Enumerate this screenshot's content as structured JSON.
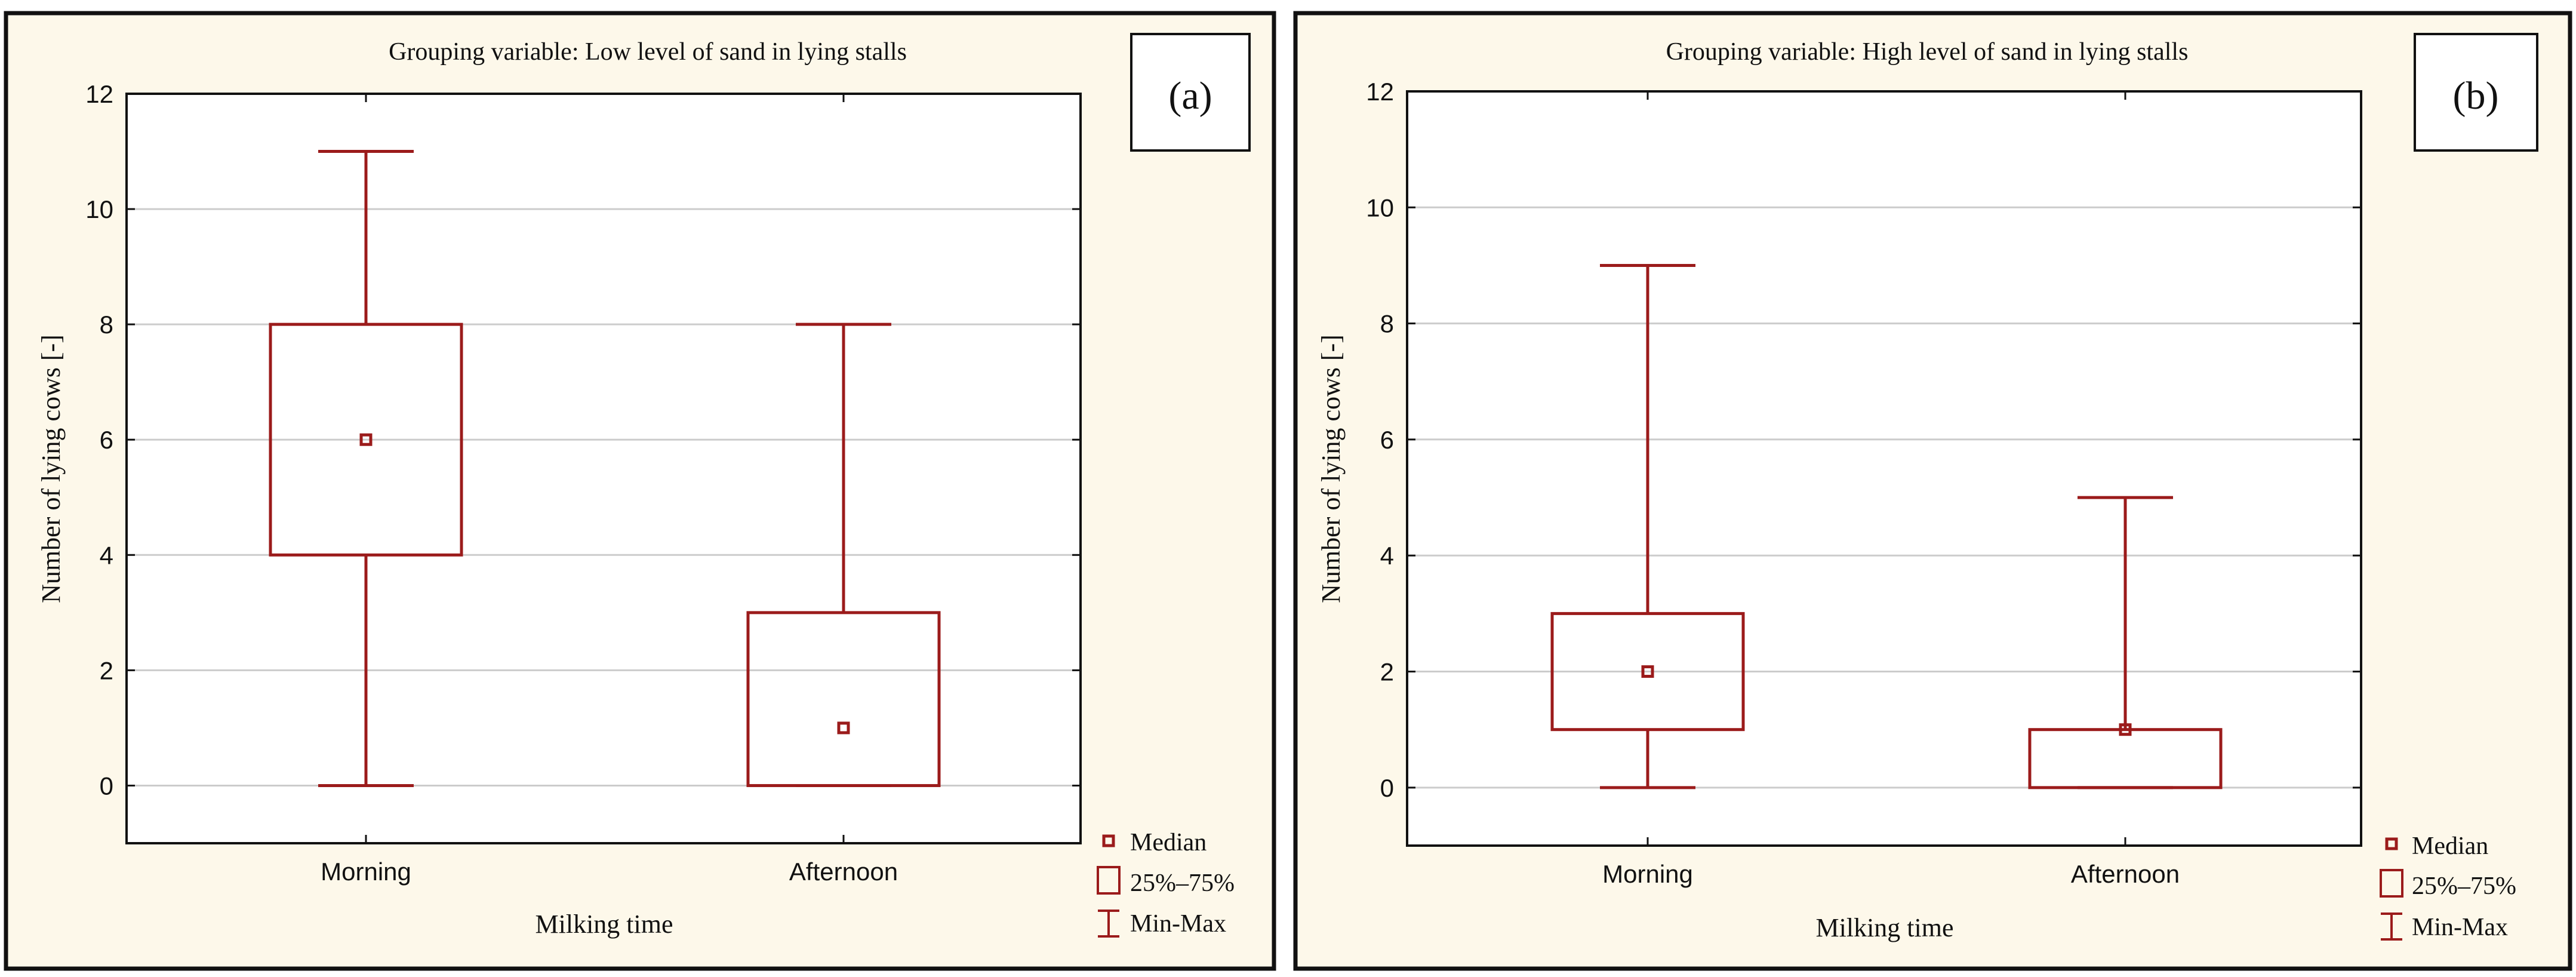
{
  "figure": {
    "colors": {
      "panel_background": "#fdf8ea",
      "plot_background": "#ffffff",
      "box_color": "#9b1b1b",
      "frame_color": "#111111",
      "grid_color": "#cccccc"
    }
  },
  "legend": {
    "median_label": "Median",
    "box_label": "25%–75%",
    "whisker_label": "Min-Max"
  },
  "chart_data": [
    {
      "type": "box",
      "panel_tag": "(a)",
      "title": "Grouping variable: Low level of sand in lying stalls",
      "xlabel": "Milking time",
      "ylabel": "Number of lying cows [-]",
      "ylim": [
        -1,
        12
      ],
      "yticks": [
        "0",
        "2",
        "4",
        "6",
        "8",
        "10",
        "12"
      ],
      "grid": true,
      "categories": [
        "Morning",
        "Afternoon"
      ],
      "boxes": [
        {
          "min": 0,
          "q1": 4,
          "median": 6,
          "q3": 8,
          "max": 11
        },
        {
          "min": 0,
          "q1": 0,
          "median": 1,
          "q3": 3,
          "max": 8
        }
      ]
    },
    {
      "type": "box",
      "panel_tag": "(b)",
      "title": "Grouping variable: High level of sand in lying stalls",
      "xlabel": "Milking time",
      "ylabel": "Number of lying cows [-]",
      "ylim": [
        -1,
        12
      ],
      "yticks": [
        "0",
        "2",
        "4",
        "6",
        "8",
        "10",
        "12"
      ],
      "grid": true,
      "categories": [
        "Morning",
        "Afternoon"
      ],
      "boxes": [
        {
          "min": 0,
          "q1": 1,
          "median": 2,
          "q3": 3,
          "max": 9
        },
        {
          "min": 0,
          "q1": 0,
          "median": 1,
          "q3": 1,
          "max": 5
        }
      ]
    }
  ]
}
